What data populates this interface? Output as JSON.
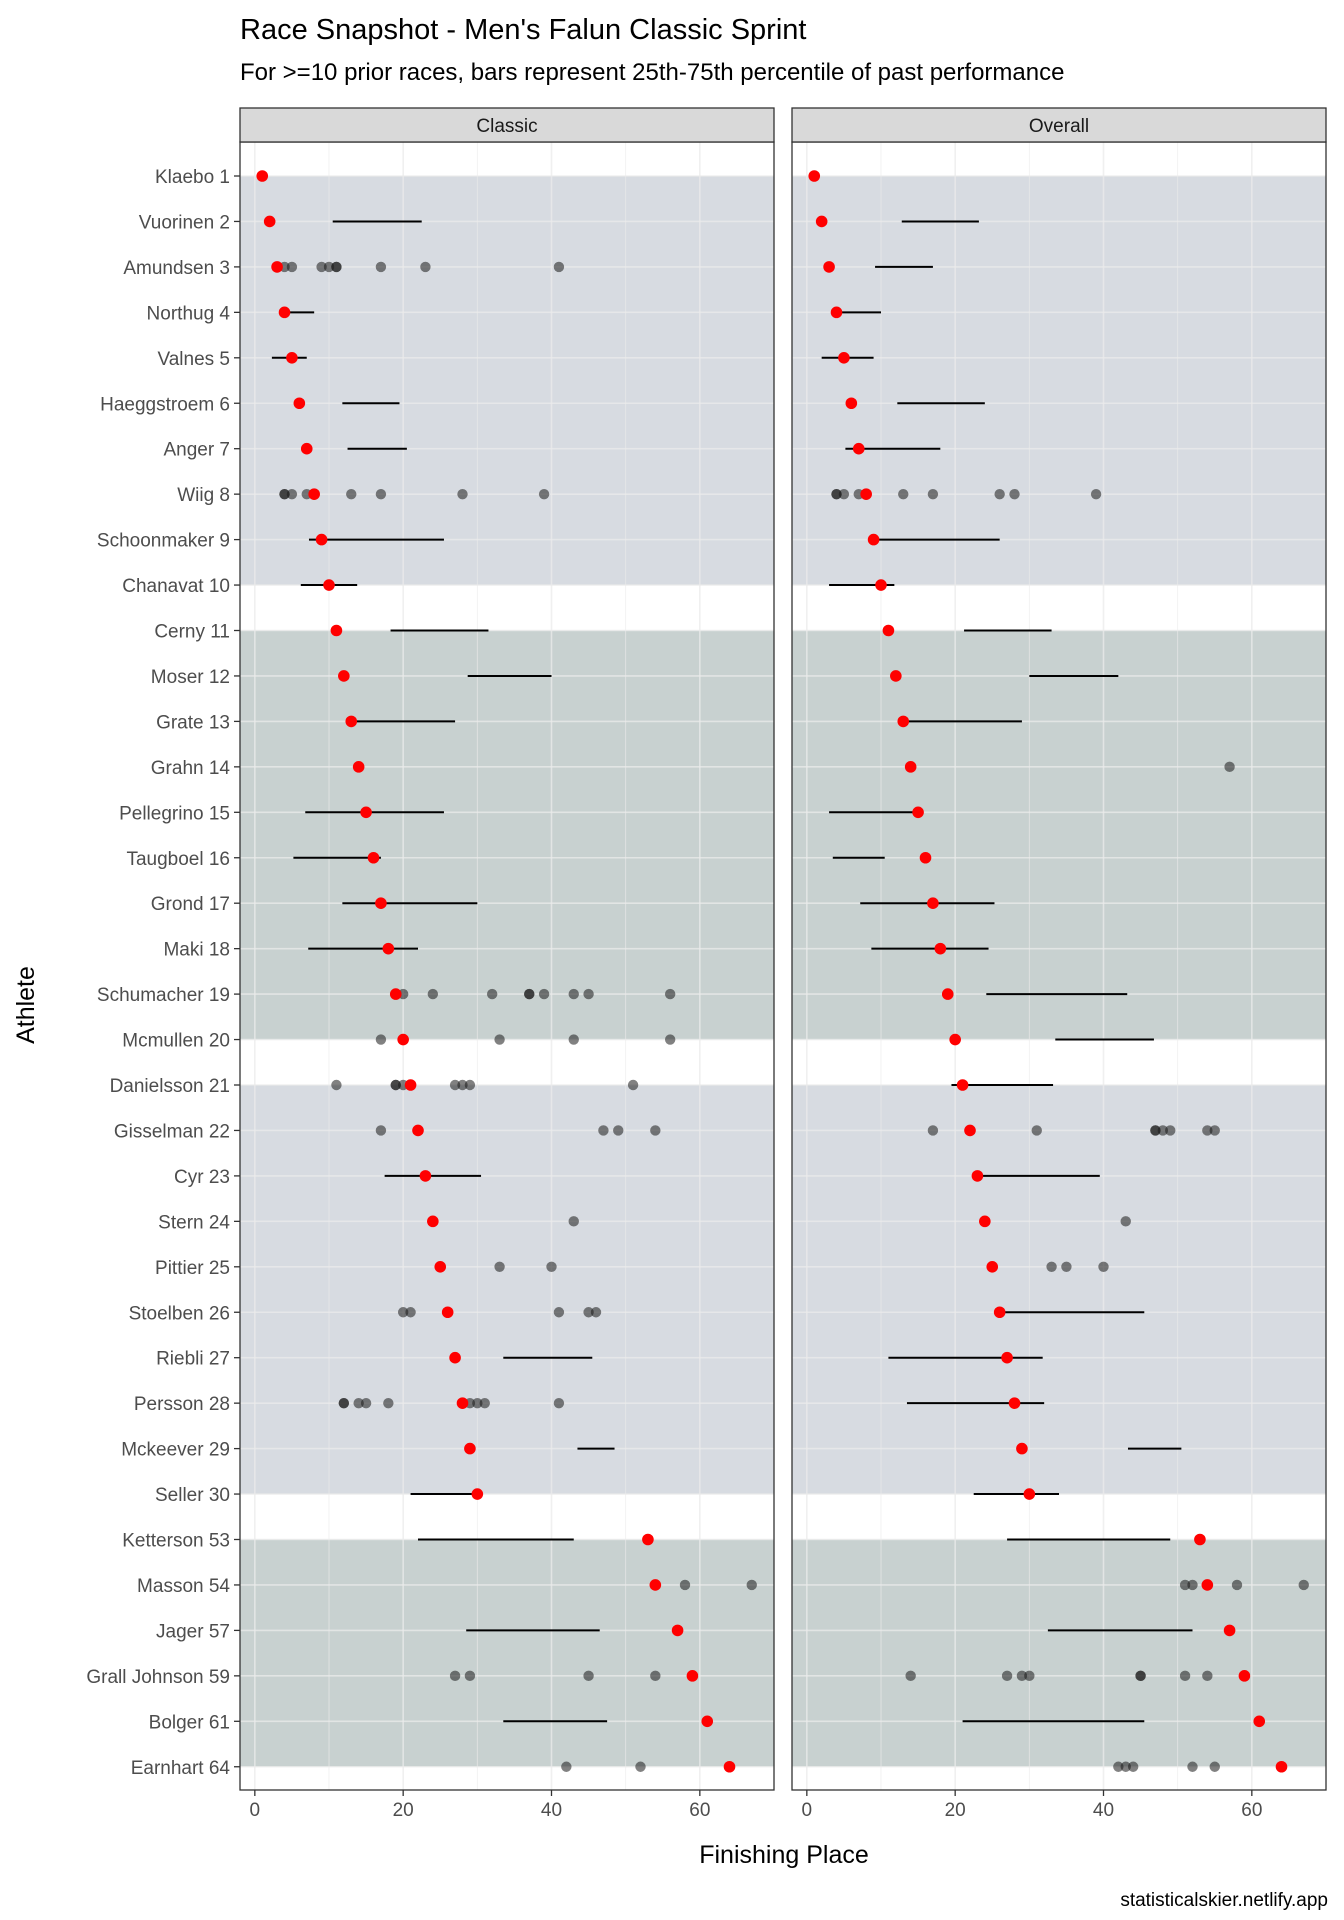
{
  "chart_data": {
    "type": "scatter",
    "title": "Race Snapshot -  Men's Falun Classic Sprint",
    "subtitle": "For >=10 prior races, bars represent 25th-75th percentile of past performance",
    "xlabel": "Finishing Place",
    "ylabel": "Athlete",
    "caption": "statisticalskier.netlify.app",
    "xlim": [
      -2,
      70
    ],
    "x_ticks": [
      0,
      20,
      40,
      60
    ],
    "grid": true,
    "colors": {
      "current_result": "#ff0000",
      "past_result": "#4d4d4d",
      "band_light": "#d7dbe1",
      "band_dark": "#c8d1d0",
      "strip": "#d9d9d9"
    },
    "bands": [
      {
        "from": "Klaebo 1",
        "to": "Chanavat 10",
        "shade": "light"
      },
      {
        "from": "Cerny 11",
        "to": "Mcmullen 20",
        "shade": "dark"
      },
      {
        "from": "Danielsson 21",
        "to": "Seller 30",
        "shade": "light"
      },
      {
        "from": "Ketterson 53",
        "to": "Earnhart 64",
        "shade": "dark"
      }
    ],
    "panels": [
      {
        "name": "Classic",
        "athletes": [
          {
            "label": "Klaebo 1",
            "current": 1,
            "iqr": null,
            "past": []
          },
          {
            "label": "Vuorinen 2",
            "current": 2,
            "iqr": [
              10.5,
              22.5
            ],
            "past": []
          },
          {
            "label": "Amundsen 3",
            "current": 3,
            "iqr": null,
            "past": [
              4,
              5,
              9,
              10,
              11,
              11,
              17,
              23,
              41
            ]
          },
          {
            "label": "Northug 4",
            "current": 4,
            "iqr": [
              4,
              8
            ],
            "past": []
          },
          {
            "label": "Valnes 5",
            "current": 5,
            "iqr": [
              2.3,
              7
            ],
            "past": []
          },
          {
            "label": "Haeggstroem 6",
            "current": 6,
            "iqr": [
              11.8,
              19.5
            ],
            "past": []
          },
          {
            "label": "Anger 7",
            "current": 7,
            "iqr": [
              12.5,
              20.5
            ],
            "past": []
          },
          {
            "label": "Wiig 8",
            "current": 8,
            "iqr": null,
            "past": [
              4,
              4,
              5,
              7,
              13,
              17,
              28,
              39
            ]
          },
          {
            "label": "Schoonmaker 9",
            "current": 9,
            "iqr": [
              7.3,
              25.5
            ],
            "past": []
          },
          {
            "label": "Chanavat 10",
            "current": 10,
            "iqr": [
              6.2,
              13.8
            ],
            "past": []
          },
          {
            "label": "Cerny 11",
            "current": 11,
            "iqr": [
              18.3,
              31.5
            ],
            "past": []
          },
          {
            "label": "Moser 12",
            "current": 12,
            "iqr": [
              28.7,
              40
            ],
            "past": []
          },
          {
            "label": "Grate 13",
            "current": 13,
            "iqr": [
              12.5,
              27
            ],
            "past": []
          },
          {
            "label": "Grahn 14",
            "current": 14,
            "iqr": null,
            "past": []
          },
          {
            "label": "Pellegrino 15",
            "current": 15,
            "iqr": [
              6.8,
              25.5
            ],
            "past": []
          },
          {
            "label": "Taugboel 16",
            "current": 16,
            "iqr": [
              5.2,
              17
            ],
            "past": []
          },
          {
            "label": "Grond 17",
            "current": 17,
            "iqr": [
              11.8,
              30
            ],
            "past": []
          },
          {
            "label": "Maki 18",
            "current": 18,
            "iqr": [
              7.2,
              22
            ],
            "past": []
          },
          {
            "label": "Schumacher 19",
            "current": 19,
            "iqr": null,
            "past": [
              20,
              24,
              32,
              37,
              37,
              39,
              43,
              45,
              56
            ]
          },
          {
            "label": "Mcmullen 20",
            "current": 20,
            "iqr": null,
            "past": [
              17,
              33,
              43,
              56
            ]
          },
          {
            "label": "Danielsson 21",
            "current": 21,
            "iqr": null,
            "past": [
              11,
              19,
              19,
              20,
              27,
              28,
              29,
              51
            ]
          },
          {
            "label": "Gisselman 22",
            "current": 22,
            "iqr": null,
            "past": [
              17,
              47,
              49,
              54
            ]
          },
          {
            "label": "Cyr 23",
            "current": 23,
            "iqr": [
              17.5,
              30.5
            ],
            "past": []
          },
          {
            "label": "Stern 24",
            "current": 24,
            "iqr": null,
            "past": [
              43
            ]
          },
          {
            "label": "Pittier 25",
            "current": 25,
            "iqr": null,
            "past": [
              33,
              40
            ]
          },
          {
            "label": "Stoelben 26",
            "current": 26,
            "iqr": null,
            "past": [
              20,
              21,
              41,
              45,
              46
            ]
          },
          {
            "label": "Riebli 27",
            "current": 27,
            "iqr": [
              33.5,
              45.5
            ],
            "past": []
          },
          {
            "label": "Persson 28",
            "current": 28,
            "iqr": null,
            "past": [
              12,
              12,
              14,
              15,
              18,
              29,
              30,
              31,
              41
            ]
          },
          {
            "label": "Mckeever 29",
            "current": 29,
            "iqr": [
              43.5,
              48.5
            ],
            "past": []
          },
          {
            "label": "Seller 30",
            "current": 30,
            "iqr": [
              21,
              30
            ],
            "past": []
          },
          {
            "label": "Ketterson 53",
            "current": 53,
            "iqr": [
              22,
              43
            ],
            "past": []
          },
          {
            "label": "Masson 54",
            "current": 54,
            "iqr": null,
            "past": [
              58,
              67
            ]
          },
          {
            "label": "Jager 57",
            "current": 57,
            "iqr": [
              28.5,
              46.5
            ],
            "past": []
          },
          {
            "label": "Grall Johnson 59",
            "current": 59,
            "iqr": null,
            "past": [
              27,
              29,
              45,
              54
            ]
          },
          {
            "label": "Bolger 61",
            "current": 61,
            "iqr": [
              33.5,
              47.5
            ],
            "past": []
          },
          {
            "label": "Earnhart 64",
            "current": 64,
            "iqr": null,
            "past": [
              42,
              52
            ]
          }
        ]
      },
      {
        "name": "Overall",
        "athletes": [
          {
            "label": "Klaebo 1",
            "current": 1,
            "iqr": null,
            "past": []
          },
          {
            "label": "Vuorinen 2",
            "current": 2,
            "iqr": [
              12.8,
              23.2
            ],
            "past": []
          },
          {
            "label": "Amundsen 3",
            "current": 3,
            "iqr": [
              9.2,
              17
            ],
            "past": []
          },
          {
            "label": "Northug 4",
            "current": 4,
            "iqr": [
              4,
              10
            ],
            "past": []
          },
          {
            "label": "Valnes 5",
            "current": 5,
            "iqr": [
              2,
              9
            ],
            "past": []
          },
          {
            "label": "Haeggstroem 6",
            "current": 6,
            "iqr": [
              12.2,
              24
            ],
            "past": []
          },
          {
            "label": "Anger 7",
            "current": 7,
            "iqr": [
              5.2,
              18
            ],
            "past": []
          },
          {
            "label": "Wiig 8",
            "current": 8,
            "iqr": null,
            "past": [
              4,
              4,
              5,
              7,
              13,
              17,
              26,
              28,
              39
            ]
          },
          {
            "label": "Schoonmaker 9",
            "current": 9,
            "iqr": [
              8.5,
              26
            ],
            "past": []
          },
          {
            "label": "Chanavat 10",
            "current": 10,
            "iqr": [
              3,
              11.8
            ],
            "past": []
          },
          {
            "label": "Cerny 11",
            "current": 11,
            "iqr": [
              21.2,
              33
            ],
            "past": []
          },
          {
            "label": "Moser 12",
            "current": 12,
            "iqr": [
              30,
              42
            ],
            "past": []
          },
          {
            "label": "Grate 13",
            "current": 13,
            "iqr": [
              12.5,
              29
            ],
            "past": []
          },
          {
            "label": "Grahn 14",
            "current": 14,
            "iqr": null,
            "past": [
              57
            ]
          },
          {
            "label": "Pellegrino 15",
            "current": 15,
            "iqr": [
              3,
              14.5
            ],
            "past": []
          },
          {
            "label": "Taugboel 16",
            "current": 16,
            "iqr": [
              3.5,
              10.5
            ],
            "past": []
          },
          {
            "label": "Grond 17",
            "current": 17,
            "iqr": [
              7.2,
              25.3
            ],
            "past": []
          },
          {
            "label": "Maki 18",
            "current": 18,
            "iqr": [
              8.7,
              24.5
            ],
            "past": []
          },
          {
            "label": "Schumacher 19",
            "current": 19,
            "iqr": [
              24.2,
              43.2
            ],
            "past": []
          },
          {
            "label": "Mcmullen 20",
            "current": 20,
            "iqr": [
              33.5,
              46.8
            ],
            "past": []
          },
          {
            "label": "Danielsson 21",
            "current": 21,
            "iqr": [
              19.5,
              33.2
            ],
            "past": []
          },
          {
            "label": "Gisselman 22",
            "current": 22,
            "iqr": null,
            "past": [
              17,
              31,
              47,
              47,
              48,
              49,
              54,
              55
            ]
          },
          {
            "label": "Cyr 23",
            "current": 23,
            "iqr": [
              23.5,
              39.5
            ],
            "past": []
          },
          {
            "label": "Stern 24",
            "current": 24,
            "iqr": null,
            "past": [
              43
            ]
          },
          {
            "label": "Pittier 25",
            "current": 25,
            "iqr": null,
            "past": [
              33,
              35,
              40
            ]
          },
          {
            "label": "Stoelben 26",
            "current": 26,
            "iqr": [
              26.5,
              45.5
            ],
            "past": []
          },
          {
            "label": "Riebli 27",
            "current": 27,
            "iqr": [
              11,
              31.8
            ],
            "past": []
          },
          {
            "label": "Persson 28",
            "current": 28,
            "iqr": [
              13.5,
              32
            ],
            "past": []
          },
          {
            "label": "Mckeever 29",
            "current": 29,
            "iqr": [
              43.3,
              50.5
            ],
            "past": []
          },
          {
            "label": "Seller 30",
            "current": 30,
            "iqr": [
              22.5,
              34
            ],
            "past": []
          },
          {
            "label": "Ketterson 53",
            "current": 53,
            "iqr": [
              27,
              49
            ],
            "past": []
          },
          {
            "label": "Masson 54",
            "current": 54,
            "iqr": null,
            "past": [
              51,
              52,
              58,
              67
            ]
          },
          {
            "label": "Jager 57",
            "current": 57,
            "iqr": [
              32.5,
              52
            ],
            "past": []
          },
          {
            "label": "Grall Johnson 59",
            "current": 59,
            "iqr": null,
            "past": [
              14,
              27,
              29,
              30,
              45,
              45,
              51,
              54
            ]
          },
          {
            "label": "Bolger 61",
            "current": 61,
            "iqr": [
              21,
              45.5
            ],
            "past": []
          },
          {
            "label": "Earnhart 64",
            "current": 64,
            "iqr": null,
            "past": [
              42,
              43,
              44,
              52,
              55
            ]
          }
        ]
      }
    ]
  }
}
